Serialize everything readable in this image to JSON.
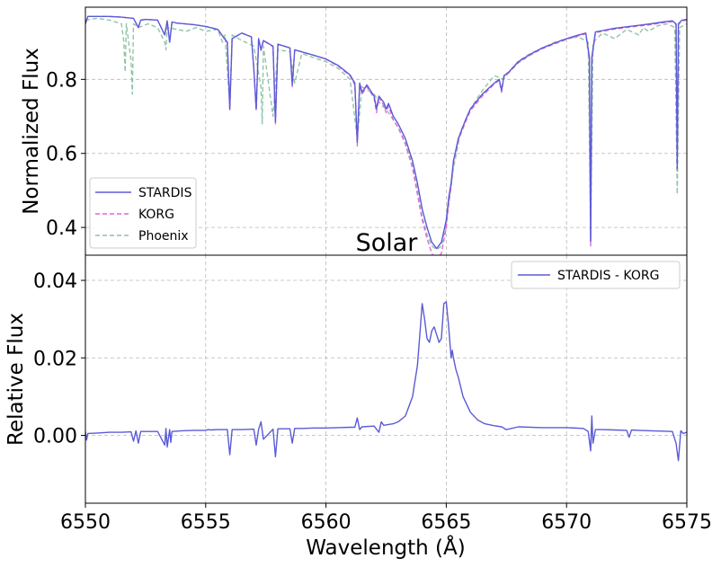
{
  "figure": {
    "panel_label": "Solar",
    "xlabel": "Wavelength (Å)"
  },
  "colors": {
    "stardis": "#5b5bd6",
    "korg": "#e066e0",
    "phoenix": "#8fc4a6",
    "diff": "#5b5bd6",
    "grid": "#b8b8b8"
  },
  "chart_data": [
    {
      "type": "line",
      "panel": "top",
      "ylabel": "Normalized Flux",
      "xlim": [
        6550,
        6575
      ],
      "ylim": [
        0.325,
        0.995
      ],
      "yticks": [
        0.4,
        0.6,
        0.8
      ],
      "ytick_labels": [
        "0.4",
        "0.6",
        "0.8"
      ],
      "grid": true,
      "legend_position": "lower-left",
      "series": [
        {
          "name": "STARDIS",
          "style": "solid",
          "x": [
            6550.0,
            6550.1,
            6551.0,
            6551.5,
            6552.0,
            6552.2,
            6552.3,
            6552.5,
            6553.0,
            6553.3,
            6553.4,
            6553.5,
            6553.6,
            6553.8,
            6554.5,
            6555.0,
            6555.5,
            6555.9,
            6556.0,
            6556.1,
            6556.5,
            6556.9,
            6557.0,
            6557.1,
            6557.2,
            6557.3,
            6557.4,
            6557.8,
            6557.9,
            6558.0,
            6558.5,
            6558.6,
            6558.7,
            6559.5,
            6560.0,
            6560.5,
            6561.0,
            6561.2,
            6561.3,
            6561.4,
            6561.5,
            6561.7,
            6562.0,
            6562.1,
            6562.2,
            6562.4,
            6562.5,
            6562.6,
            6562.8,
            6563.0,
            6563.3,
            6563.6,
            6563.8,
            6564.0,
            6564.2,
            6564.4,
            6564.6,
            6564.8,
            6565.0,
            6565.1,
            6565.2,
            6565.3,
            6565.5,
            6565.8,
            6566.0,
            6566.5,
            6567.0,
            6567.2,
            6567.3,
            6567.4,
            6567.6,
            6568.0,
            6568.5,
            6569.0,
            6569.5,
            6570.0,
            6570.5,
            6570.8,
            6570.95,
            6571.0,
            6571.05,
            6571.2,
            6571.5,
            6572.0,
            6572.5,
            6573.0,
            6573.5,
            6574.0,
            6574.4,
            6574.55,
            6574.6,
            6574.65,
            6574.8,
            6575.0
          ],
          "y": [
            0.95,
            0.97,
            0.97,
            0.968,
            0.965,
            0.94,
            0.96,
            0.962,
            0.96,
            0.92,
            0.958,
            0.9,
            0.955,
            0.952,
            0.948,
            0.943,
            0.935,
            0.9,
            0.72,
            0.91,
            0.925,
            0.915,
            0.83,
            0.72,
            0.91,
            0.88,
            0.905,
            0.89,
            0.685,
            0.895,
            0.885,
            0.785,
            0.88,
            0.865,
            0.855,
            0.838,
            0.812,
            0.79,
            0.63,
            0.79,
            0.765,
            0.785,
            0.755,
            0.72,
            0.755,
            0.738,
            0.72,
            0.735,
            0.7,
            0.68,
            0.64,
            0.58,
            0.52,
            0.45,
            0.4,
            0.36,
            0.343,
            0.36,
            0.42,
            0.48,
            0.52,
            0.58,
            0.64,
            0.69,
            0.72,
            0.76,
            0.79,
            0.8,
            0.77,
            0.81,
            0.82,
            0.848,
            0.868,
            0.885,
            0.898,
            0.91,
            0.92,
            0.925,
            0.86,
            0.363,
            0.86,
            0.928,
            0.932,
            0.938,
            0.942,
            0.946,
            0.95,
            0.955,
            0.958,
            0.95,
            0.56,
            0.95,
            0.96,
            0.962
          ]
        },
        {
          "name": "KORG",
          "style": "dashed",
          "x": [
            6550.0,
            6550.1,
            6551.0,
            6551.5,
            6552.0,
            6552.2,
            6552.3,
            6552.5,
            6553.0,
            6553.3,
            6553.4,
            6553.5,
            6553.6,
            6553.8,
            6554.5,
            6555.0,
            6555.5,
            6555.9,
            6556.0,
            6556.1,
            6556.5,
            6556.9,
            6557.0,
            6557.1,
            6557.2,
            6557.3,
            6557.4,
            6557.8,
            6557.9,
            6558.0,
            6558.5,
            6558.6,
            6558.7,
            6559.5,
            6560.0,
            6560.5,
            6561.0,
            6561.2,
            6561.3,
            6561.4,
            6561.5,
            6561.7,
            6562.0,
            6562.1,
            6562.2,
            6562.4,
            6562.5,
            6562.6,
            6562.8,
            6563.0,
            6563.3,
            6563.6,
            6563.8,
            6564.0,
            6564.2,
            6564.4,
            6564.6,
            6564.8,
            6565.0,
            6565.1,
            6565.2,
            6565.3,
            6565.5,
            6565.8,
            6566.0,
            6566.5,
            6567.0,
            6567.2,
            6567.3,
            6567.4,
            6567.6,
            6568.0,
            6568.5,
            6569.0,
            6569.5,
            6570.0,
            6570.5,
            6570.8,
            6570.95,
            6571.0,
            6571.05,
            6571.2,
            6571.5,
            6572.0,
            6572.5,
            6573.0,
            6573.5,
            6574.0,
            6574.4,
            6574.55,
            6574.6,
            6574.65,
            6574.8,
            6575.0
          ],
          "y": [
            0.95,
            0.97,
            0.97,
            0.968,
            0.965,
            0.94,
            0.96,
            0.962,
            0.96,
            0.92,
            0.958,
            0.9,
            0.955,
            0.952,
            0.948,
            0.943,
            0.935,
            0.9,
            0.718,
            0.91,
            0.925,
            0.915,
            0.83,
            0.716,
            0.91,
            0.878,
            0.905,
            0.888,
            0.68,
            0.895,
            0.885,
            0.78,
            0.88,
            0.865,
            0.855,
            0.836,
            0.81,
            0.785,
            0.62,
            0.785,
            0.76,
            0.78,
            0.75,
            0.71,
            0.75,
            0.73,
            0.71,
            0.728,
            0.69,
            0.67,
            0.625,
            0.56,
            0.49,
            0.42,
            0.37,
            0.33,
            0.31,
            0.33,
            0.4,
            0.465,
            0.51,
            0.575,
            0.635,
            0.685,
            0.715,
            0.755,
            0.788,
            0.797,
            0.765,
            0.807,
            0.818,
            0.845,
            0.866,
            0.883,
            0.896,
            0.908,
            0.918,
            0.923,
            0.85,
            0.35,
            0.85,
            0.926,
            0.93,
            0.936,
            0.94,
            0.944,
            0.948,
            0.953,
            0.956,
            0.948,
            0.55,
            0.948,
            0.958,
            0.96
          ]
        },
        {
          "name": "Phoenix",
          "style": "dashed",
          "x": [
            6550.0,
            6550.5,
            6551.0,
            6551.5,
            6551.6,
            6551.65,
            6551.7,
            6551.9,
            6551.95,
            6552.0,
            6552.2,
            6552.6,
            6553.0,
            6553.3,
            6553.35,
            6553.4,
            6553.8,
            6554.2,
            6554.6,
            6555.0,
            6555.5,
            6555.7,
            6555.8,
            6556.0,
            6556.1,
            6556.5,
            6557.0,
            6557.3,
            6557.35,
            6557.4,
            6557.8,
            6558.0,
            6558.5,
            6558.7,
            6559.0,
            6559.5,
            6560.0,
            6560.5,
            6561.0,
            6561.3,
            6561.5,
            6562.0,
            6562.3,
            6562.5,
            6562.8,
            6563.0,
            6563.3,
            6563.6,
            6563.8,
            6564.0,
            6564.2,
            6564.4,
            6564.6,
            6564.8,
            6565.0,
            6565.3,
            6565.6,
            6566.0,
            6566.5,
            6567.0,
            6567.4,
            6567.6,
            6568.0,
            6568.5,
            6569.0,
            6569.5,
            6570.0,
            6570.5,
            6570.9,
            6571.0,
            6571.1,
            6571.5,
            6572.0,
            6572.5,
            6573.0,
            6573.2,
            6573.4,
            6573.8,
            6574.2,
            6574.5,
            6574.6,
            6574.7,
            6575.0
          ],
          "y": [
            0.96,
            0.965,
            0.96,
            0.95,
            0.9,
            0.82,
            0.95,
            0.85,
            0.76,
            0.95,
            0.94,
            0.95,
            0.94,
            0.9,
            0.88,
            0.94,
            0.935,
            0.93,
            0.94,
            0.93,
            0.935,
            0.9,
            0.92,
            0.73,
            0.92,
            0.905,
            0.89,
            0.78,
            0.68,
            0.89,
            0.7,
            0.88,
            0.875,
            0.79,
            0.87,
            0.858,
            0.848,
            0.83,
            0.8,
            0.64,
            0.78,
            0.76,
            0.73,
            0.72,
            0.69,
            0.67,
            0.63,
            0.57,
            0.5,
            0.43,
            0.38,
            0.35,
            0.34,
            0.35,
            0.41,
            0.56,
            0.66,
            0.72,
            0.77,
            0.81,
            0.8,
            0.82,
            0.85,
            0.87,
            0.885,
            0.9,
            0.91,
            0.915,
            0.9,
            0.36,
            0.9,
            0.925,
            0.91,
            0.935,
            0.92,
            0.94,
            0.93,
            0.945,
            0.95,
            0.94,
            0.49,
            0.94,
            0.95
          ]
        }
      ]
    },
    {
      "type": "line",
      "panel": "bottom",
      "ylabel": "Relative Flux",
      "xlim": [
        6550,
        6575
      ],
      "ylim": [
        -0.0175,
        0.0465
      ],
      "xticks": [
        6550,
        6555,
        6560,
        6565,
        6570,
        6575
      ],
      "xtick_labels": [
        "6550",
        "6555",
        "6560",
        "6565",
        "6570",
        "6575"
      ],
      "yticks": [
        0.0,
        0.02,
        0.04
      ],
      "ytick_labels": [
        "0.00",
        "0.02",
        "0.04"
      ],
      "grid": true,
      "legend_position": "upper-right",
      "series": [
        {
          "name": "STARDIS - KORG",
          "style": "solid",
          "x": [
            6550.0,
            6550.05,
            6550.1,
            6550.5,
            6551.0,
            6551.5,
            6551.9,
            6552.0,
            6552.1,
            6552.2,
            6552.3,
            6552.5,
            6553.0,
            6553.3,
            6553.35,
            6553.4,
            6553.5,
            6553.55,
            6553.6,
            6554.0,
            6554.5,
            6555.0,
            6555.1,
            6555.2,
            6555.5,
            6555.9,
            6556.0,
            6556.1,
            6556.5,
            6557.0,
            6557.1,
            6557.2,
            6557.3,
            6557.4,
            6557.8,
            6557.9,
            6558.0,
            6558.5,
            6558.6,
            6558.7,
            6559.0,
            6559.5,
            6560.0,
            6560.5,
            6561.0,
            6561.2,
            6561.3,
            6561.4,
            6561.5,
            6562.0,
            6562.2,
            6562.3,
            6562.4,
            6562.8,
            6563.0,
            6563.3,
            6563.6,
            6563.8,
            6563.9,
            6564.0,
            6564.1,
            6564.2,
            6564.3,
            6564.4,
            6564.5,
            6564.6,
            6564.7,
            6564.8,
            6564.9,
            6565.0,
            6565.1,
            6565.2,
            6565.25,
            6565.3,
            6565.4,
            6565.5,
            6565.7,
            6566.0,
            6566.3,
            6566.6,
            6567.0,
            6567.3,
            6567.5,
            6568.0,
            6569.0,
            6570.0,
            6570.7,
            6570.9,
            6571.0,
            6571.05,
            6571.1,
            6571.2,
            6571.5,
            6572.0,
            6572.5,
            6572.6,
            6572.7,
            6573.0,
            6573.5,
            6574.0,
            6574.4,
            6574.55,
            6574.65,
            6574.75,
            6574.85,
            6575.0
          ],
          "y": [
            0.001,
            -0.0012,
            0.0005,
            0.0006,
            0.0008,
            0.0008,
            0.0009,
            -0.0015,
            0.0012,
            -0.002,
            0.001,
            0.001,
            0.001,
            -0.0025,
            0.0018,
            -0.003,
            0.0015,
            -0.0018,
            0.001,
            0.0012,
            0.0013,
            0.0013,
            0.0015,
            0.0014,
            0.0015,
            0.0015,
            -0.005,
            0.0015,
            0.0015,
            0.0016,
            -0.0025,
            0.0016,
            0.0035,
            -0.001,
            0.0016,
            -0.0055,
            0.0017,
            0.0017,
            -0.002,
            0.0018,
            0.0018,
            0.0019,
            0.0019,
            0.002,
            0.0021,
            0.0021,
            0.0045,
            0.0015,
            0.0022,
            0.0024,
            0.0008,
            0.0035,
            0.0026,
            0.003,
            0.0035,
            0.005,
            0.01,
            0.018,
            0.026,
            0.034,
            0.03,
            0.025,
            0.024,
            0.027,
            0.028,
            0.026,
            0.024,
            0.025,
            0.034,
            0.0345,
            0.028,
            0.02,
            0.022,
            0.02,
            0.017,
            0.015,
            0.01,
            0.006,
            0.004,
            0.003,
            0.0025,
            0.0022,
            0.0015,
            0.0022,
            0.002,
            0.002,
            0.0018,
            0.001,
            -0.004,
            0.005,
            -0.002,
            0.0015,
            0.0015,
            0.0014,
            0.0013,
            -0.0005,
            0.0014,
            0.0013,
            0.0012,
            0.0011,
            0.001,
            -0.002,
            -0.0065,
            0.0012,
            0.0005,
            0.0008
          ]
        }
      ]
    }
  ]
}
